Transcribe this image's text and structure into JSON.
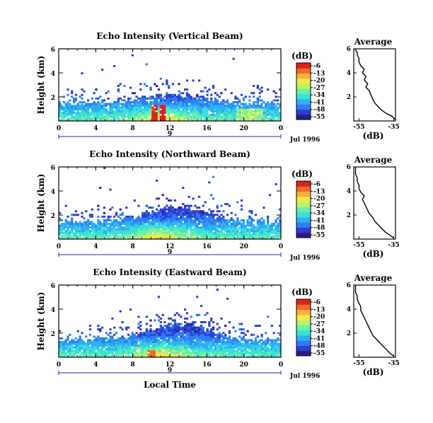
{
  "colors": {
    "colormap": [
      "#2a1b8e",
      "#2f3fcf",
      "#2f7df5",
      "#2fb0f2",
      "#3be0d8",
      "#6cf0a8",
      "#b9f26a",
      "#f2e84a",
      "#f6b338",
      "#f06a2a",
      "#d8231d"
    ],
    "line": "#000000",
    "axis_blue": "#1f2fa8"
  },
  "xlabel_bottom": "Local Time",
  "chart_data": [
    {
      "type": "heatmap",
      "title": "Echo Intensity (Vertical Beam)",
      "ylabel": "Height (km)",
      "xlim": [
        0,
        24
      ],
      "ylim": [
        0,
        6
      ],
      "x_ticks": [
        "0",
        "4",
        "8",
        "12",
        "16",
        "20",
        "0"
      ],
      "y_ticks": [
        "2",
        "4",
        "6"
      ],
      "date_axis": {
        "day": "9",
        "label": "Jul 1996"
      },
      "colorbar": {
        "unit": "(dB)",
        "ticks": [
          "-6",
          "-13",
          "-20",
          "-27",
          "-34",
          "-41",
          "-48",
          "-55"
        ]
      },
      "profile": {
        "title": "Average",
        "xlabel": "(dB)",
        "x_ticks": [
          "-55",
          "-35"
        ],
        "y_ticks": [
          "2",
          "4",
          "6"
        ],
        "xlim": [
          -58,
          -34
        ],
        "ylim": [
          0,
          6
        ],
        "x": [
          -34,
          -36,
          -39,
          -42,
          -44,
          -46,
          -47,
          -48,
          -49,
          -51,
          -50,
          -52,
          -51,
          -53,
          -52,
          -54,
          -55,
          -55,
          -56,
          -56,
          -57,
          -57
        ],
        "y": [
          0.1,
          0.4,
          0.6,
          0.9,
          1.2,
          1.5,
          1.8,
          2.1,
          2.5,
          2.8,
          3.1,
          3.4,
          3.7,
          4.0,
          4.3,
          4.6,
          4.9,
          5.2,
          5.5,
          5.7,
          5.9,
          6.0
        ]
      }
    },
    {
      "type": "heatmap",
      "title": "Echo Intensity (Northward Beam)",
      "ylabel": "Height (km)",
      "xlim": [
        0,
        24
      ],
      "ylim": [
        0,
        6
      ],
      "x_ticks": [
        "0",
        "4",
        "8",
        "12",
        "16",
        "20",
        "0"
      ],
      "y_ticks": [
        "2",
        "4",
        "6"
      ],
      "date_axis": {
        "day": "9",
        "label": "Jul 1996"
      },
      "colorbar": {
        "unit": "(dB)",
        "ticks": [
          "-6",
          "-13",
          "-20",
          "-27",
          "-34",
          "-41",
          "-48",
          "-55"
        ]
      },
      "profile": {
        "title": "Average",
        "xlabel": "(dB)",
        "x_ticks": [
          "-55",
          "-35"
        ],
        "y_ticks": [
          "2",
          "4",
          "6"
        ],
        "xlim": [
          -58,
          -34
        ],
        "ylim": [
          0,
          6
        ],
        "x": [
          -35,
          -37,
          -40,
          -42,
          -44,
          -46,
          -47,
          -49,
          -50,
          -51,
          -52,
          -53,
          -52,
          -54,
          -55,
          -55,
          -56,
          -56,
          -57,
          -57,
          -57,
          -57
        ],
        "y": [
          0.1,
          0.3,
          0.6,
          0.9,
          1.2,
          1.5,
          1.8,
          2.1,
          2.4,
          2.7,
          3.0,
          3.3,
          3.6,
          3.9,
          4.2,
          4.5,
          4.8,
          5.1,
          5.4,
          5.6,
          5.8,
          6.0
        ]
      }
    },
    {
      "type": "heatmap",
      "title": "Echo Intensity (Eastward Beam)",
      "ylabel": "Height (km)",
      "xlim": [
        0,
        24
      ],
      "ylim": [
        0,
        6
      ],
      "x_ticks": [
        "0",
        "4",
        "8",
        "12",
        "16",
        "20",
        "0"
      ],
      "y_ticks": [
        "2",
        "4",
        "6"
      ],
      "date_axis": {
        "day": "9",
        "label": "Jul 1996"
      },
      "colorbar": {
        "unit": "(dB)",
        "ticks": [
          "-6",
          "-13",
          "-20",
          "-27",
          "-34",
          "-41",
          "-48",
          "-55"
        ]
      },
      "profile": {
        "title": "Average",
        "xlabel": "(dB)",
        "x_ticks": [
          "-55",
          "-35"
        ],
        "y_ticks": [
          "2",
          "4",
          "6"
        ],
        "xlim": [
          -58,
          -34
        ],
        "ylim": [
          0,
          6
        ],
        "x": [
          -35,
          -37,
          -39,
          -41,
          -43,
          -45,
          -47,
          -48,
          -49,
          -50,
          -51,
          -52,
          -53,
          -54,
          -54,
          -55,
          -56,
          -56,
          -57,
          -57,
          -57,
          -57
        ],
        "y": [
          0.1,
          0.3,
          0.6,
          0.9,
          1.2,
          1.5,
          1.8,
          2.1,
          2.4,
          2.7,
          3.0,
          3.3,
          3.6,
          3.9,
          4.2,
          4.5,
          4.8,
          5.1,
          5.4,
          5.6,
          5.8,
          6.0
        ]
      }
    }
  ]
}
